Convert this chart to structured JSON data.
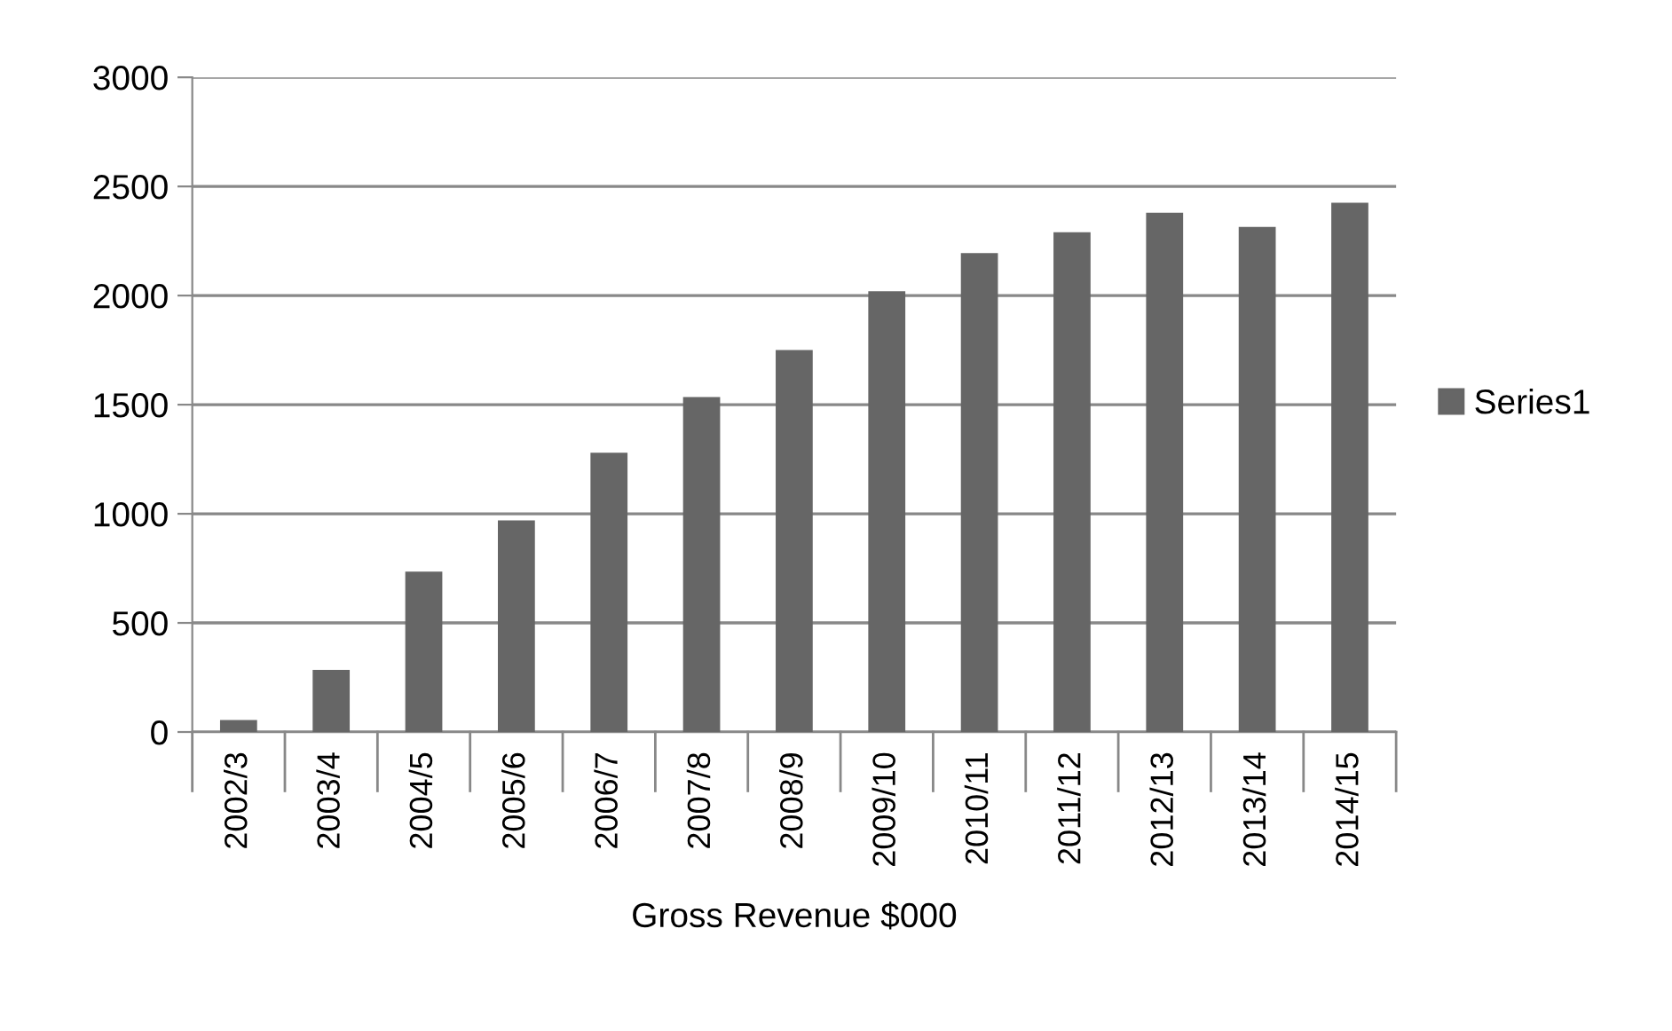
{
  "chart_data": {
    "type": "bar",
    "xlabel": "Gross Revenue $000",
    "categories": [
      "2002/3",
      "2003/4",
      "2004/5",
      "2005/6",
      "2006/7",
      "2007/8",
      "2008/9",
      "2009/10",
      "2010/11",
      "2011/12",
      "2012/13",
      "2013/14",
      "2014/15"
    ],
    "series": [
      {
        "name": "Series1",
        "color": "#666666",
        "values": [
          55,
          285,
          735,
          970,
          1280,
          1535,
          1750,
          2020,
          2195,
          2290,
          2380,
          2315,
          2425
        ]
      }
    ],
    "ylim": [
      0,
      3000
    ],
    "yticks": [
      0,
      500,
      1000,
      1500,
      2000,
      2500,
      3000
    ],
    "grid": "y",
    "legend": "right"
  }
}
